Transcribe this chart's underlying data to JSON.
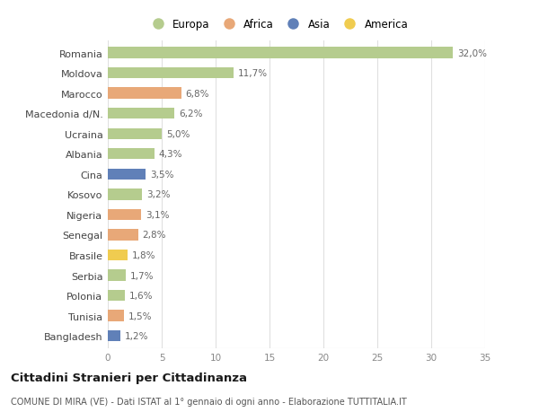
{
  "countries": [
    "Romania",
    "Moldova",
    "Marocco",
    "Macedonia d/N.",
    "Ucraina",
    "Albania",
    "Cina",
    "Kosovo",
    "Nigeria",
    "Senegal",
    "Brasile",
    "Serbia",
    "Polonia",
    "Tunisia",
    "Bangladesh"
  ],
  "values": [
    32.0,
    11.7,
    6.8,
    6.2,
    5.0,
    4.3,
    3.5,
    3.2,
    3.1,
    2.8,
    1.8,
    1.7,
    1.6,
    1.5,
    1.2
  ],
  "labels": [
    "32,0%",
    "11,7%",
    "6,8%",
    "6,2%",
    "5,0%",
    "4,3%",
    "3,5%",
    "3,2%",
    "3,1%",
    "2,8%",
    "1,8%",
    "1,7%",
    "1,6%",
    "1,5%",
    "1,2%"
  ],
  "continents": [
    "Europa",
    "Europa",
    "Africa",
    "Europa",
    "Europa",
    "Europa",
    "Asia",
    "Europa",
    "Africa",
    "Africa",
    "America",
    "Europa",
    "Europa",
    "Africa",
    "Asia"
  ],
  "colors": {
    "Europa": "#b5cc8e",
    "Africa": "#e8a878",
    "Asia": "#6080b8",
    "America": "#f0cc50"
  },
  "legend_order": [
    "Europa",
    "Africa",
    "Asia",
    "America"
  ],
  "xlim": [
    0,
    35
  ],
  "xticks": [
    0,
    5,
    10,
    15,
    20,
    25,
    30,
    35
  ],
  "bg_color": "#ffffff",
  "grid_color": "#e0e0e0",
  "title": "Cittadini Stranieri per Cittadinanza",
  "subtitle": "COMUNE DI MIRA (VE) - Dati ISTAT al 1° gennaio di ogni anno - Elaborazione TUTTITALIA.IT",
  "bar_height": 0.55
}
